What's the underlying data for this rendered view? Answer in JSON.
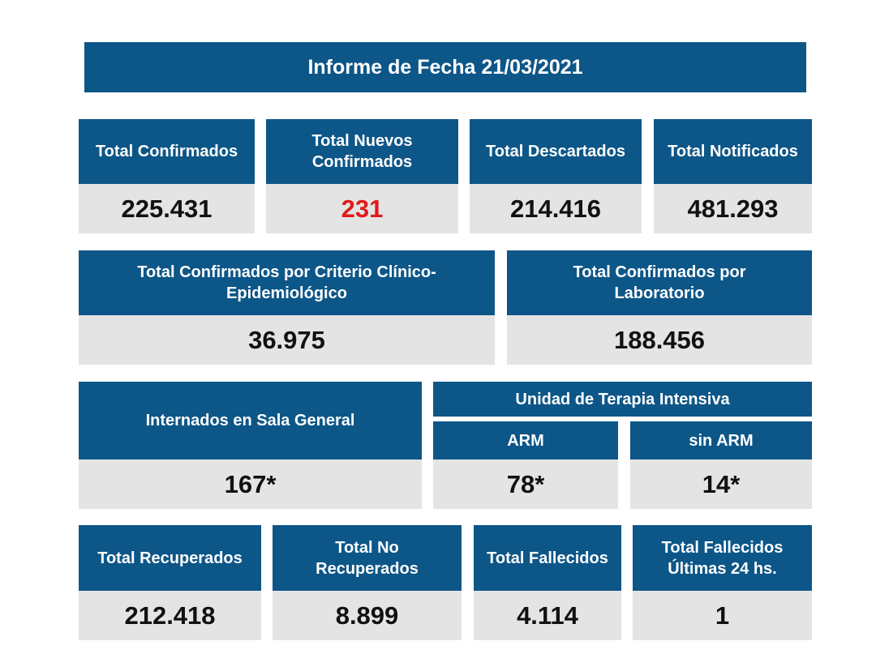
{
  "title": "Informe de Fecha 21/03/2021",
  "row1": [
    {
      "label": "Total Confirmados",
      "value": "225.431"
    },
    {
      "label": "Total Nuevos Confirmados",
      "value": "231"
    },
    {
      "label": "Total Descartados",
      "value": "214.416"
    },
    {
      "label": "Total Notificados",
      "value": "481.293"
    }
  ],
  "row2": [
    {
      "label": "Total Confirmados por Criterio Clínico-Epidemiológico",
      "value": "36.975"
    },
    {
      "label": "Total Confirmados por Laboratorio",
      "value": "188.456"
    }
  ],
  "row3": {
    "sala_general": {
      "label": "Internados en Sala General",
      "value": "167*"
    },
    "uti_label": "Unidad de Terapia Intensiva",
    "arm": {
      "label": "ARM",
      "value": "78*"
    },
    "sin_arm": {
      "label": "sin ARM",
      "value": "14*"
    }
  },
  "row4": [
    {
      "label": "Total Recuperados",
      "value": "212.418"
    },
    {
      "label": "Total No Recuperados",
      "value": "8.899"
    },
    {
      "label": "Total Fallecidos",
      "value": "4.114"
    },
    {
      "label": "Total Fallecidos Últimas 24 hs.",
      "value": "1"
    }
  ],
  "colors": {
    "header_bg": "#0d5688",
    "value_bg": "#e4e4e4",
    "highlight": "#e01b1b"
  }
}
